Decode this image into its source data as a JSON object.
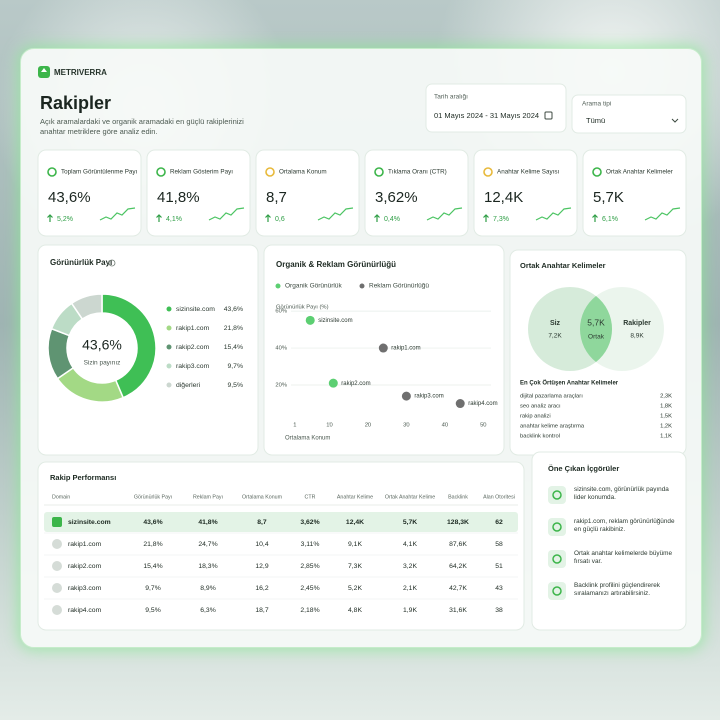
{
  "brand": "METRIVERRA",
  "header": {
    "title": "Rakipler",
    "subtitle": "Açık aramalardaki ve organik aramadaki en güçlü rakiplerinizi anahtar metriklere göre analiz edin."
  },
  "filters": {
    "date_label": "Tarih aralığı",
    "date_value": "01 Mayıs 2024 - 31 Mayıs 2024",
    "type_label": "Arama tipi",
    "type_value": "Tümü"
  },
  "kpis": [
    {
      "label": "Toplam Görüntülenme Payı",
      "value": "43,6%",
      "change": "5,2%"
    },
    {
      "label": "Reklam Gösterim Payı",
      "value": "41,8%",
      "change": "4,1%"
    },
    {
      "label": "Ortalama Konum",
      "value": "8,7",
      "change": "0,6"
    },
    {
      "label": "Tıklama Oranı (CTR)",
      "value": "3,62%",
      "change": "0,4%"
    },
    {
      "label": "Anahtar Kelime Sayısı",
      "value": "12,4K",
      "change": "7,3%"
    },
    {
      "label": "Ortak Anahtar Kelimeler",
      "value": "5,7K",
      "change": "6,1%"
    }
  ],
  "chart_data": [
    {
      "type": "pie",
      "title": "Görünürlük Payı",
      "center_caption": "Sizin payınız",
      "categories": [
        "sizinsite.com",
        "rakip1.com",
        "rakip2.com",
        "rakip3.com",
        "diğerleri"
      ],
      "values": [
        43.6,
        21.8,
        15.4,
        9.7,
        9.5
      ],
      "value_labels": [
        "43,6%",
        "21,8%",
        "15,4%",
        "9,7%",
        "9,5%"
      ],
      "colors": [
        "#3fbf55",
        "#a3d985",
        "#5f9472",
        "#bcdcc6",
        "#ccd7d0"
      ]
    },
    {
      "type": "scatter",
      "title": "Organik & Reklam Görünürlüğü",
      "y_label": "Görünürlük Payı (%)",
      "x_label": "Ortalama Konum",
      "xlim": [
        0,
        52
      ],
      "ylim": [
        0,
        66
      ],
      "xticks": [
        1,
        10,
        20,
        30,
        40,
        50
      ],
      "yticks": [
        {
          "value": 20,
          "label": "20%"
        },
        {
          "value": 40,
          "label": "40%"
        },
        {
          "value": 60,
          "label": "60%"
        }
      ],
      "grid": true,
      "series": [
        {
          "name": "Organik Görünürlük",
          "color": "#5ccf72",
          "x": [
            5,
            11
          ],
          "values": [
            55,
            21
          ],
          "labels": [
            "sizinsite.com",
            "rakip2.com"
          ]
        },
        {
          "name": "Reklam Görünürlüğü",
          "color": "#6f6f6f",
          "x": [
            24,
            30,
            44
          ],
          "values": [
            40,
            14,
            10
          ],
          "labels": [
            "rakip1.com",
            "rakip3.com",
            "rakip4.com"
          ]
        }
      ]
    }
  ],
  "overlap": {
    "title": "Ortak Anahtar Kelimeler",
    "left_label": "Siz",
    "left_value": "7,2K",
    "center_value": "5,7K",
    "center_label": "Ortak",
    "right_label": "Rakipler",
    "right_value": "8,9K",
    "list_title": "En Çok Örtüşen Anahtar Kelimeler",
    "items": [
      {
        "keyword": "dijital pazarlama araçları",
        "count": "2,3K"
      },
      {
        "keyword": "seo analiz aracı",
        "count": "1,8K"
      },
      {
        "keyword": "rakip analizi",
        "count": "1,5K"
      },
      {
        "keyword": "anahtar kelime araştırma",
        "count": "1,2K"
      },
      {
        "keyword": "backlink kontrol",
        "count": "1,1K"
      }
    ]
  },
  "table": {
    "title": "Rakip Performansı",
    "columns": [
      "Domain",
      "Görünürlük Payı",
      "Reklam Payı",
      "Ortalama Konum",
      "CTR",
      "Anahtar Kelime",
      "Ortak Anahtar Kelime",
      "Backlink",
      "Alan Otoritesi"
    ],
    "rows": [
      [
        "sizinsite.com",
        "43,6%",
        "41,8%",
        "8,7",
        "3,62%",
        "12,4K",
        "5,7K",
        "128,3K",
        "62"
      ],
      [
        "rakip1.com",
        "21,8%",
        "24,7%",
        "10,4",
        "3,11%",
        "9,1K",
        "4,1K",
        "87,6K",
        "58"
      ],
      [
        "rakip2.com",
        "15,4%",
        "18,3%",
        "12,9",
        "2,85%",
        "7,3K",
        "3,2K",
        "64,2K",
        "51"
      ],
      [
        "rakip3.com",
        "9,7%",
        "8,9%",
        "16,2",
        "2,45%",
        "5,2K",
        "2,1K",
        "42,7K",
        "43"
      ],
      [
        "rakip4.com",
        "9,5%",
        "6,3%",
        "18,7",
        "2,18%",
        "4,8K",
        "1,9K",
        "31,6K",
        "38"
      ]
    ]
  },
  "insights": {
    "title": "Öne Çıkan İçgörüler",
    "items": [
      "sizinsite.com, görünürlük payında lider konumda.",
      "rakip1.com, reklam görünürlüğünde en güçlü rakibiniz.",
      "Ortak anahtar kelimelerde büyüme fırsatı var.",
      "Backlink profilini güçlendirerek sıralamanızı artırabilirsiniz."
    ]
  }
}
